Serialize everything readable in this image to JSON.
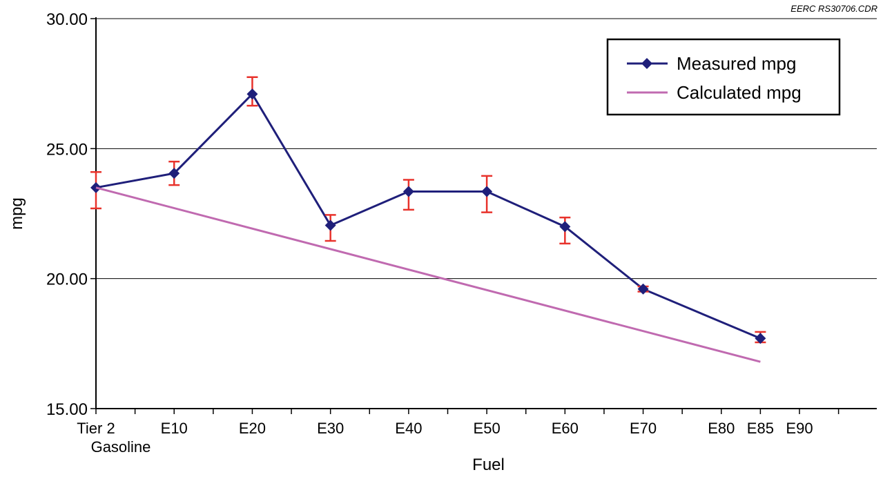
{
  "credit": "EERC RS30706.CDR",
  "chart_data": {
    "type": "line",
    "xlabel": "Fuel",
    "ylabel": "mpg",
    "ylim": [
      15,
      30
    ],
    "yticks": [
      "15.00",
      "20.00",
      "25.00",
      "30.00"
    ],
    "grid": "horizontal",
    "x_axis": {
      "range": [
        0,
        100
      ],
      "ticks": [
        {
          "x": 0,
          "label": [
            "Tier 2",
            "Gasoline"
          ]
        },
        {
          "x": 10,
          "label": [
            "E10"
          ]
        },
        {
          "x": 20,
          "label": [
            "E20"
          ]
        },
        {
          "x": 30,
          "label": [
            "E30"
          ]
        },
        {
          "x": 40,
          "label": [
            "E40"
          ]
        },
        {
          "x": 50,
          "label": [
            "E50"
          ]
        },
        {
          "x": 60,
          "label": [
            "E60"
          ]
        },
        {
          "x": 70,
          "label": [
            "E70"
          ]
        },
        {
          "x": 80,
          "label": [
            "E80"
          ]
        },
        {
          "x": 85,
          "label": [
            "E85"
          ]
        },
        {
          "x": 90,
          "label": [
            "E90"
          ]
        }
      ]
    },
    "series": [
      {
        "name": "Measured mpg",
        "color": "#1f1f7a",
        "marker": "diamond",
        "points": [
          {
            "x": 0,
            "y": 23.5,
            "err_low": 22.7,
            "err_high": 24.1
          },
          {
            "x": 10,
            "y": 24.05,
            "err_low": 23.6,
            "err_high": 24.5
          },
          {
            "x": 20,
            "y": 27.1,
            "err_low": 26.65,
            "err_high": 27.75
          },
          {
            "x": 30,
            "y": 22.05,
            "err_low": 21.45,
            "err_high": 22.45
          },
          {
            "x": 40,
            "y": 23.35,
            "err_low": 22.65,
            "err_high": 23.8
          },
          {
            "x": 50,
            "y": 23.35,
            "err_low": 22.55,
            "err_high": 23.95
          },
          {
            "x": 60,
            "y": 22.0,
            "err_low": 21.35,
            "err_high": 22.35
          },
          {
            "x": 70,
            "y": 19.6,
            "err_low": 19.5,
            "err_high": 19.7
          },
          {
            "x": 85,
            "y": 17.7,
            "err_low": 17.55,
            "err_high": 17.95
          }
        ],
        "error_color": "#e8322b"
      },
      {
        "name": "Calculated mpg",
        "color": "#c06ab0",
        "marker": "none",
        "points": [
          {
            "x": 0,
            "y": 23.5
          },
          {
            "x": 85,
            "y": 16.8
          }
        ]
      }
    ],
    "legend": {
      "position": "top-right"
    }
  }
}
